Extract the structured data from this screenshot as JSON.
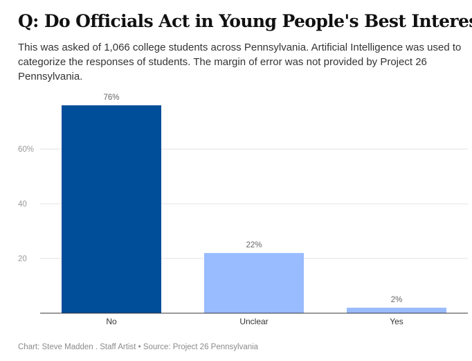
{
  "chart_data": {
    "type": "bar",
    "title": "Q: Do Officials Act in Young People's Best Interest?",
    "subtitle": "This was asked of 1,066 college students across Pennsylvania. Artificial Intelligence was used to categorize the responses of students. The margin of error was not provided by Project 26 Pennsylvania.",
    "categories": [
      "No",
      "Unclear",
      "Yes"
    ],
    "values": [
      76,
      22,
      2
    ],
    "value_labels": [
      "76%",
      "22%",
      "2%"
    ],
    "colors": [
      "#004e9a",
      "#99bbff",
      "#99bbff"
    ],
    "xlabel": "",
    "ylabel": "",
    "ylim": [
      0,
      76
    ],
    "yticks": [
      20,
      40,
      60
    ],
    "ytick_labels": [
      "20",
      "40",
      "60%"
    ],
    "grid": true,
    "source": "Chart: Steve Madden . Staff Artist • Source: Project 26 Pennsylvania"
  }
}
